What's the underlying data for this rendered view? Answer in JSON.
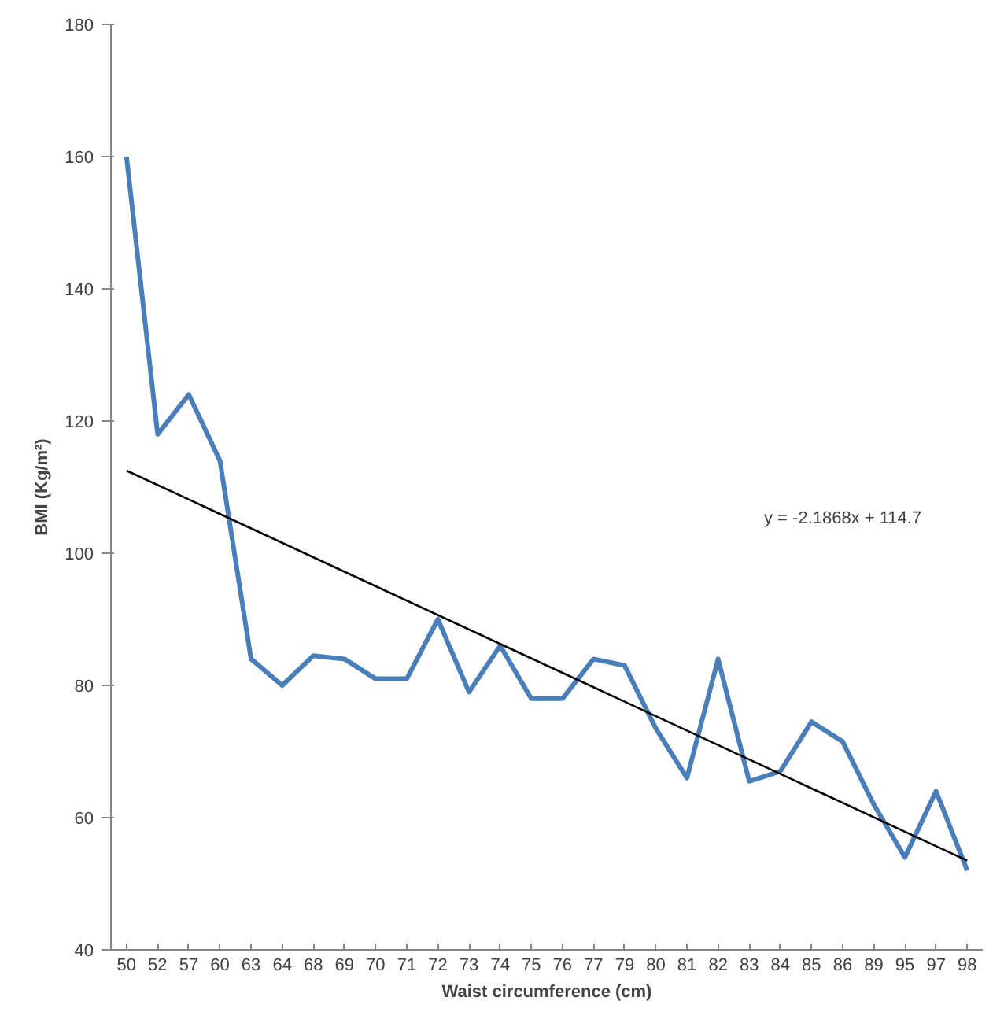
{
  "chart_data": {
    "type": "line",
    "xlabel": "Waist circumference (cm)",
    "ylabel": "BMI (Kg/m²)",
    "categories": [
      "50",
      "52",
      "57",
      "60",
      "63",
      "64",
      "68",
      "69",
      "70",
      "71",
      "72",
      "73",
      "74",
      "75",
      "76",
      "77",
      "79",
      "80",
      "81",
      "82",
      "83",
      "84",
      "85",
      "86",
      "89",
      "95",
      "97",
      "98"
    ],
    "series": [
      {
        "color": "#4a7ebb",
        "values": [
          160,
          118,
          124,
          114,
          84,
          80,
          84.5,
          84,
          81,
          81,
          90,
          79,
          86,
          78,
          78,
          84,
          83,
          73.5,
          66,
          84,
          65.5,
          67,
          74.5,
          71.5,
          62,
          54,
          64,
          52
        ]
      },
      {
        "type": "line",
        "color": "#000000",
        "x": [
          "50",
          "98"
        ],
        "values": [
          112.5,
          53.5
        ]
      }
    ],
    "ylim": [
      40,
      180
    ],
    "yticks": [
      40,
      60,
      80,
      100,
      120,
      140,
      160,
      180
    ],
    "grid": false,
    "annotations": [
      "y = -2.1868x + 114.7"
    ]
  }
}
